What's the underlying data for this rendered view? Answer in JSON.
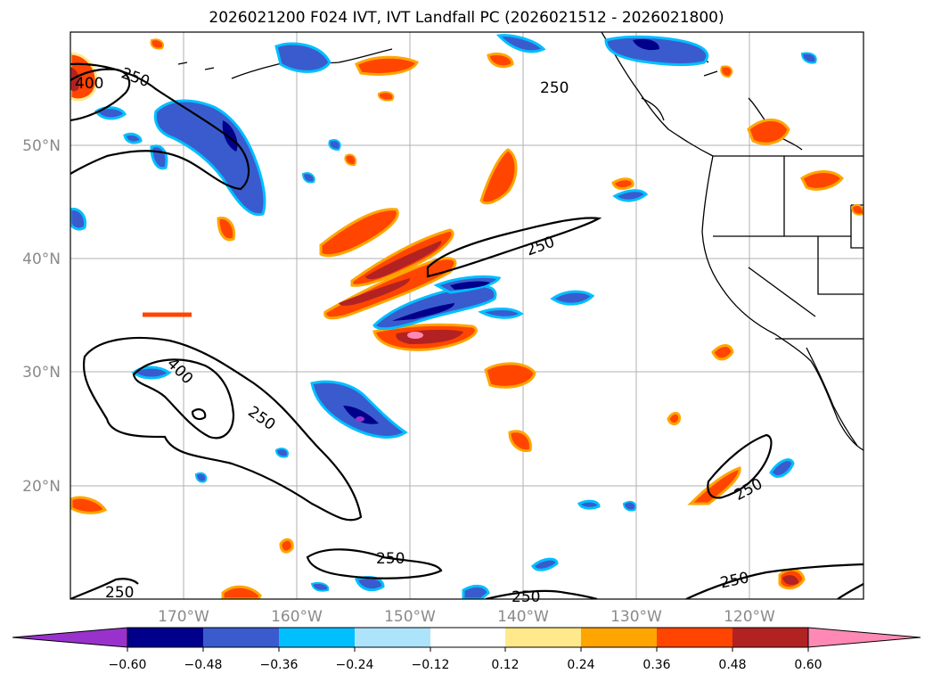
{
  "title": "2026021200 F024 IVT, IVT Landfall PC (2026021512 - 2026021800)",
  "map": {
    "lon_labels": [
      "170°W",
      "160°W",
      "150°W",
      "140°W",
      "130°W",
      "120°W"
    ],
    "lat_labels": [
      "50°N",
      "40°N",
      "30°N",
      "20°N"
    ],
    "contour_labels": [
      "400",
      "250",
      "250",
      "250",
      "400",
      "250",
      "250",
      "250",
      "250",
      "250",
      "250"
    ]
  },
  "colorbar": {
    "ticks": [
      "−0.60",
      "−0.48",
      "−0.36",
      "−0.24",
      "−0.12",
      "0.12",
      "0.24",
      "0.36",
      "0.48",
      "0.60"
    ],
    "colors": {
      "under": "#9932cc",
      "n060": "#00008b",
      "n048": "#3a5bcd",
      "n036": "#00bfff",
      "n024": "#aee4fb",
      "mid": "#ffffff",
      "p012": "#ffe98a",
      "p024": "#ffa500",
      "p036": "#ff4500",
      "p048": "#b22222",
      "over": "#ff89b4"
    }
  }
}
